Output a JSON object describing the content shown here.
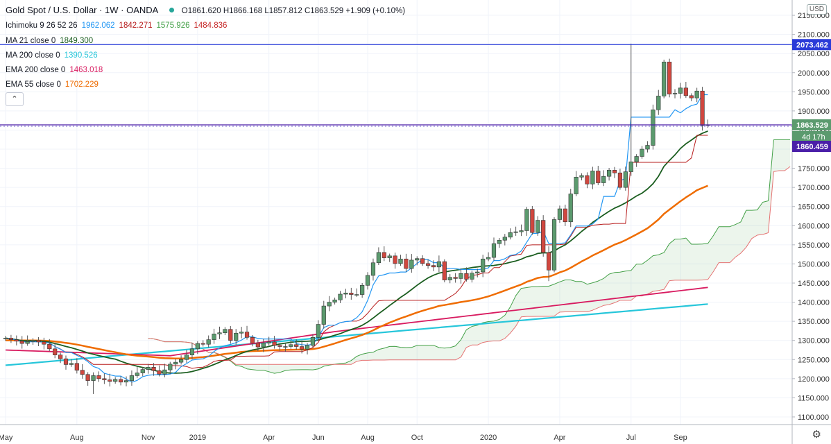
{
  "header": {
    "title": "Gold Spot / U.S. Dollar · 1W · OANDA",
    "o": "O1861.620",
    "h": "H1866.168",
    "l": "L1857.812",
    "c": "C1863.529",
    "chg": "+1.909 (+0.10%)"
  },
  "legend": [
    {
      "label": "Ichimoku 9 26 52 26",
      "values": [
        {
          "text": "1962.062",
          "color": "#2196f3"
        },
        {
          "text": "1842.271",
          "color": "#b71c1c"
        },
        {
          "text": "1575.926",
          "color": "#43a047"
        },
        {
          "text": "1484.836",
          "color": "#c62828"
        }
      ]
    },
    {
      "label": "MA 21 close 0",
      "values": [
        {
          "text": "1849.300",
          "color": "#1b5e20"
        }
      ]
    },
    {
      "label": "MA 200 close 0",
      "values": [
        {
          "text": "1390.526",
          "color": "#26c6da"
        }
      ]
    },
    {
      "label": "EMA 200 close 0",
      "values": [
        {
          "text": "1463.018",
          "color": "#d81b60"
        }
      ]
    },
    {
      "label": "EMA 55 close 0",
      "values": [
        {
          "text": "1702.229",
          "color": "#ef6c00"
        }
      ]
    }
  ],
  "currency": "USD",
  "price_tags": {
    "high_line": "2073.462",
    "last": "1863.529",
    "countdown": "4d 17h",
    "prev": "1860.459"
  },
  "chart_data": {
    "type": "candlestick",
    "title": "Gold Spot / U.S. Dollar · 1W · OANDA",
    "ylim": [
      1080,
      2190
    ],
    "y_ticks": [
      1100,
      1150,
      1200,
      1250,
      1300,
      1350,
      1400,
      1450,
      1500,
      1550,
      1600,
      1650,
      1700,
      1750,
      1800,
      1850,
      1900,
      1950,
      2000,
      2050,
      2100,
      2150
    ],
    "x_labels": [
      {
        "label": "May",
        "week": 0
      },
      {
        "label": "Aug",
        "week": 13
      },
      {
        "label": "Nov",
        "week": 26
      },
      {
        "label": "2019",
        "week": 35
      },
      {
        "label": "Apr",
        "week": 48
      },
      {
        "label": "Jun",
        "week": 57
      },
      {
        "label": "Aug",
        "week": 66
      },
      {
        "label": "Oct",
        "week": 75
      },
      {
        "label": "2020",
        "week": 88
      },
      {
        "label": "Apr",
        "week": 101
      },
      {
        "label": "Jul",
        "week": 114
      },
      {
        "label": "Sep",
        "week": 123
      }
    ],
    "closes": [
      1306,
      1302,
      1298,
      1292,
      1297,
      1300,
      1296,
      1290,
      1278,
      1262,
      1252,
      1237,
      1240,
      1222,
      1211,
      1195,
      1208,
      1200,
      1197,
      1193,
      1198,
      1191,
      1195,
      1208,
      1215,
      1224,
      1230,
      1221,
      1212,
      1223,
      1238,
      1243,
      1250,
      1262,
      1278,
      1292,
      1290,
      1302,
      1317,
      1320,
      1329,
      1300,
      1319,
      1322,
      1308,
      1293,
      1283,
      1293,
      1296,
      1287,
      1284,
      1284,
      1289,
      1284,
      1277,
      1287,
      1308,
      1342,
      1390,
      1400,
      1406,
      1421,
      1424,
      1420,
      1420,
      1444,
      1470,
      1503,
      1530,
      1516,
      1521,
      1501,
      1513,
      1488,
      1510,
      1514,
      1501,
      1496,
      1492,
      1506,
      1458,
      1465,
      1462,
      1475,
      1460,
      1476,
      1479,
      1513,
      1517,
      1553,
      1562,
      1570,
      1582,
      1584,
      1587,
      1643,
      1582,
      1614,
      1530,
      1484,
      1616,
      1644,
      1610,
      1683,
      1727,
      1731,
      1709,
      1743,
      1712,
      1729,
      1745,
      1738,
      1700,
      1741,
      1767,
      1781,
      1800,
      1810,
      1903,
      1939,
      2028,
      1944,
      1946,
      1960,
      1940,
      1934,
      1952,
      1862,
      1864
    ],
    "ichimoku": {
      "tenkan": 1962.062,
      "kijun": 1842.271,
      "span_a": 1575.926,
      "span_b": 1484.836
    },
    "ma21": 1849.3,
    "ma200": 1390.526,
    "ema200": 1463.018,
    "ema55": 1702.229,
    "high_price": 2073.462,
    "last_price": 1863.529,
    "prev_price": 1860.459,
    "colors": {
      "up": "#5b9a6e",
      "down": "#d0473f",
      "tenkan": "#2196f3",
      "kijun": "#b71c1c",
      "cloud_up": "#43a047",
      "cloud_dn": "#e57373",
      "ma21": "#1b5e20",
      "ma200": "#26c6da",
      "ema200": "#d81b60",
      "ema55": "#ef6c00",
      "high_line": "#2a3bd8",
      "last_line": "#4a1fa8"
    }
  }
}
